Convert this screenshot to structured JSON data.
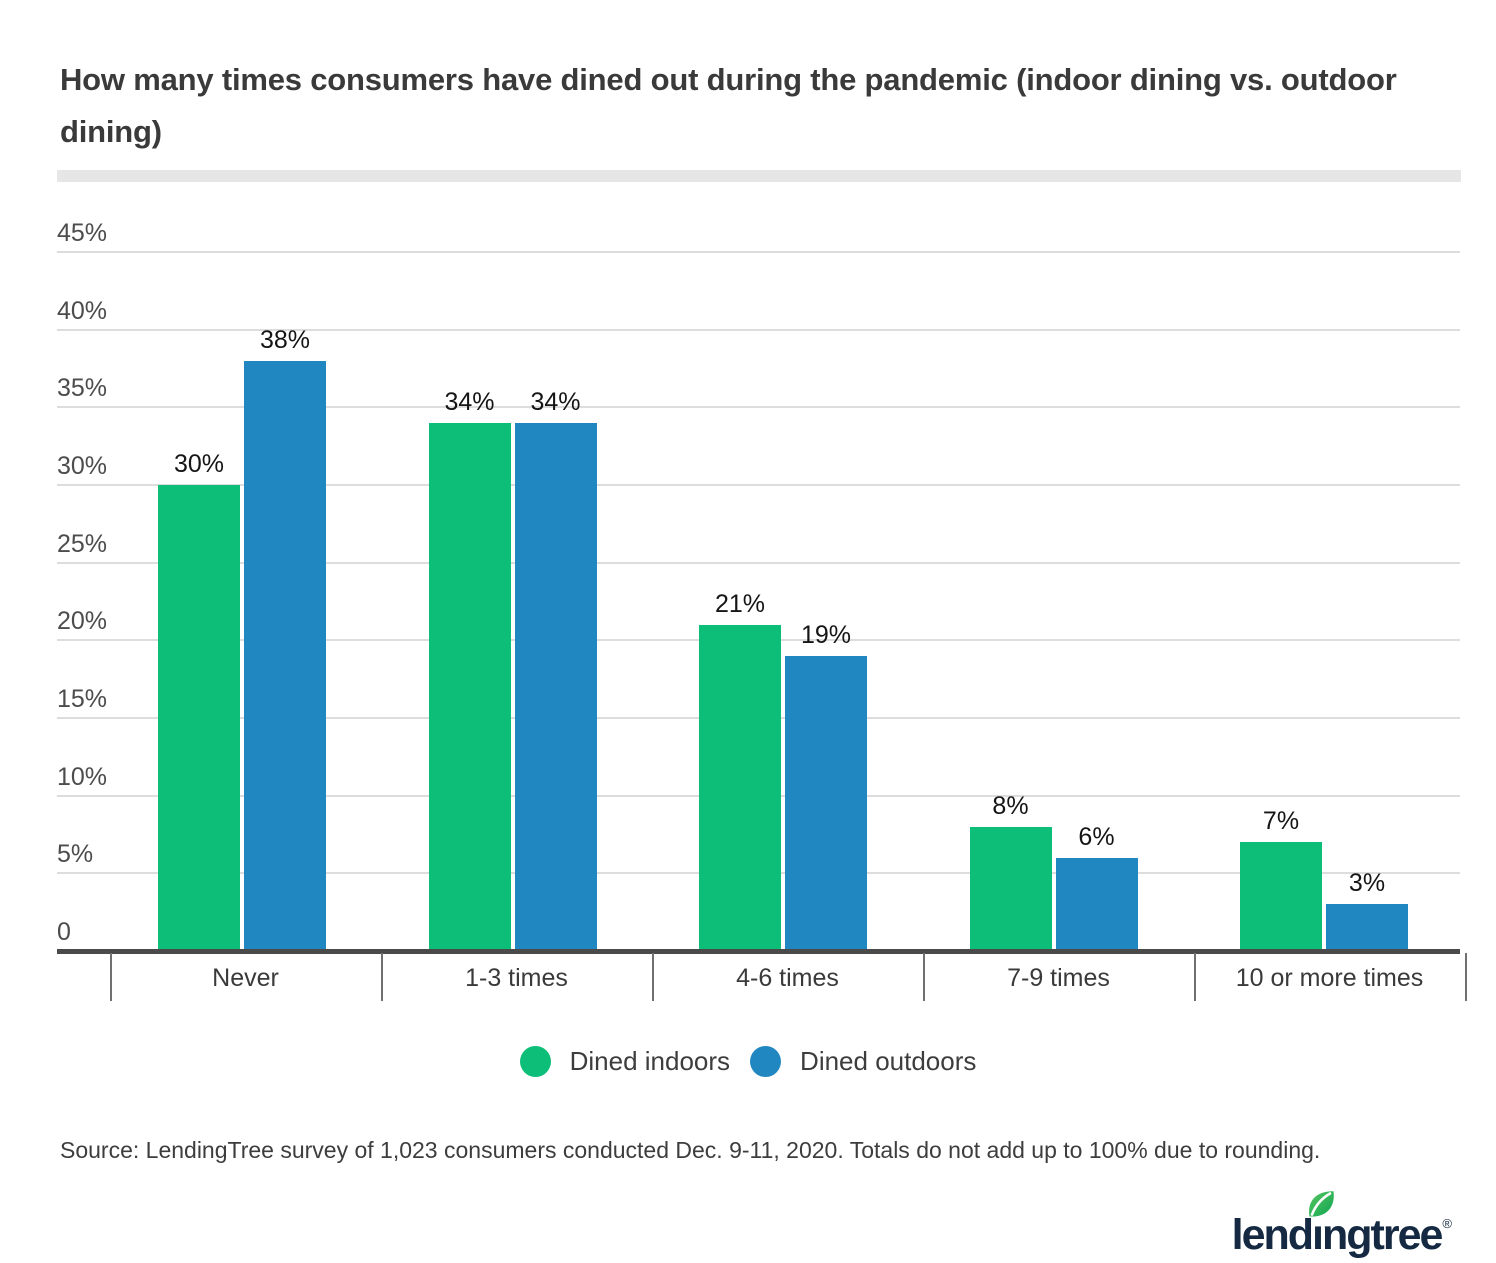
{
  "title": "How many times consumers have dined out during the pandemic (indoor dining vs. outdoor dining)",
  "source": "Source: LendingTree survey of 1,023 consumers conducted Dec. 9-11, 2020. Totals do not add up to 100% due to rounding.",
  "logo": {
    "text": "lendingtree",
    "registered": "®"
  },
  "legend": {
    "items": [
      {
        "label": "Dined indoors",
        "color": "#0dbe78"
      },
      {
        "label": "Dined outdoors",
        "color": "#2187c1"
      }
    ]
  },
  "colors": {
    "indoor_green": "#0dbe78",
    "outdoor_blue": "#2187c1",
    "gridline": "#dddddd",
    "axis": "#4a4a4a",
    "divider": "#e6e6e6",
    "logo_navy": "#152a42",
    "leaf_green_light": "#58c75f",
    "leaf_green_dark": "#0fa554"
  },
  "chart_data": {
    "type": "bar",
    "title": "How many times consumers have dined out during the pandemic (indoor dining vs. outdoor dining)",
    "categories": [
      "Never",
      "1-3 times",
      "4-6 times",
      "7-9 times",
      "10 or more times"
    ],
    "series": [
      {
        "name": "Dined indoors",
        "color": "#0dbe78",
        "values": [
          30,
          34,
          21,
          8,
          7
        ],
        "value_labels": [
          "30%",
          "34%",
          "21%",
          "8%",
          "7%"
        ]
      },
      {
        "name": "Dined outdoors",
        "color": "#2187c1",
        "values": [
          38,
          34,
          19,
          6,
          3
        ],
        "value_labels": [
          "38%",
          "34%",
          "19%",
          "6%",
          "3%"
        ]
      }
    ],
    "xlabel": "",
    "ylabel": "",
    "y_axis": {
      "min": 0,
      "max": 45,
      "ticks": [
        {
          "label": "45%",
          "value": 45
        },
        {
          "label": "40%",
          "value": 40
        },
        {
          "label": "35%",
          "value": 35
        },
        {
          "label": "30%",
          "value": 30
        },
        {
          "label": "25%",
          "value": 25
        },
        {
          "label": "20%",
          "value": 20
        },
        {
          "label": "15%",
          "value": 15
        },
        {
          "label": "10%",
          "value": 10
        },
        {
          "label": "5%",
          "value": 5
        },
        {
          "label": "0",
          "value": 0
        }
      ]
    },
    "grid": true,
    "legend_position": "bottom",
    "value_labels_shown": true
  }
}
